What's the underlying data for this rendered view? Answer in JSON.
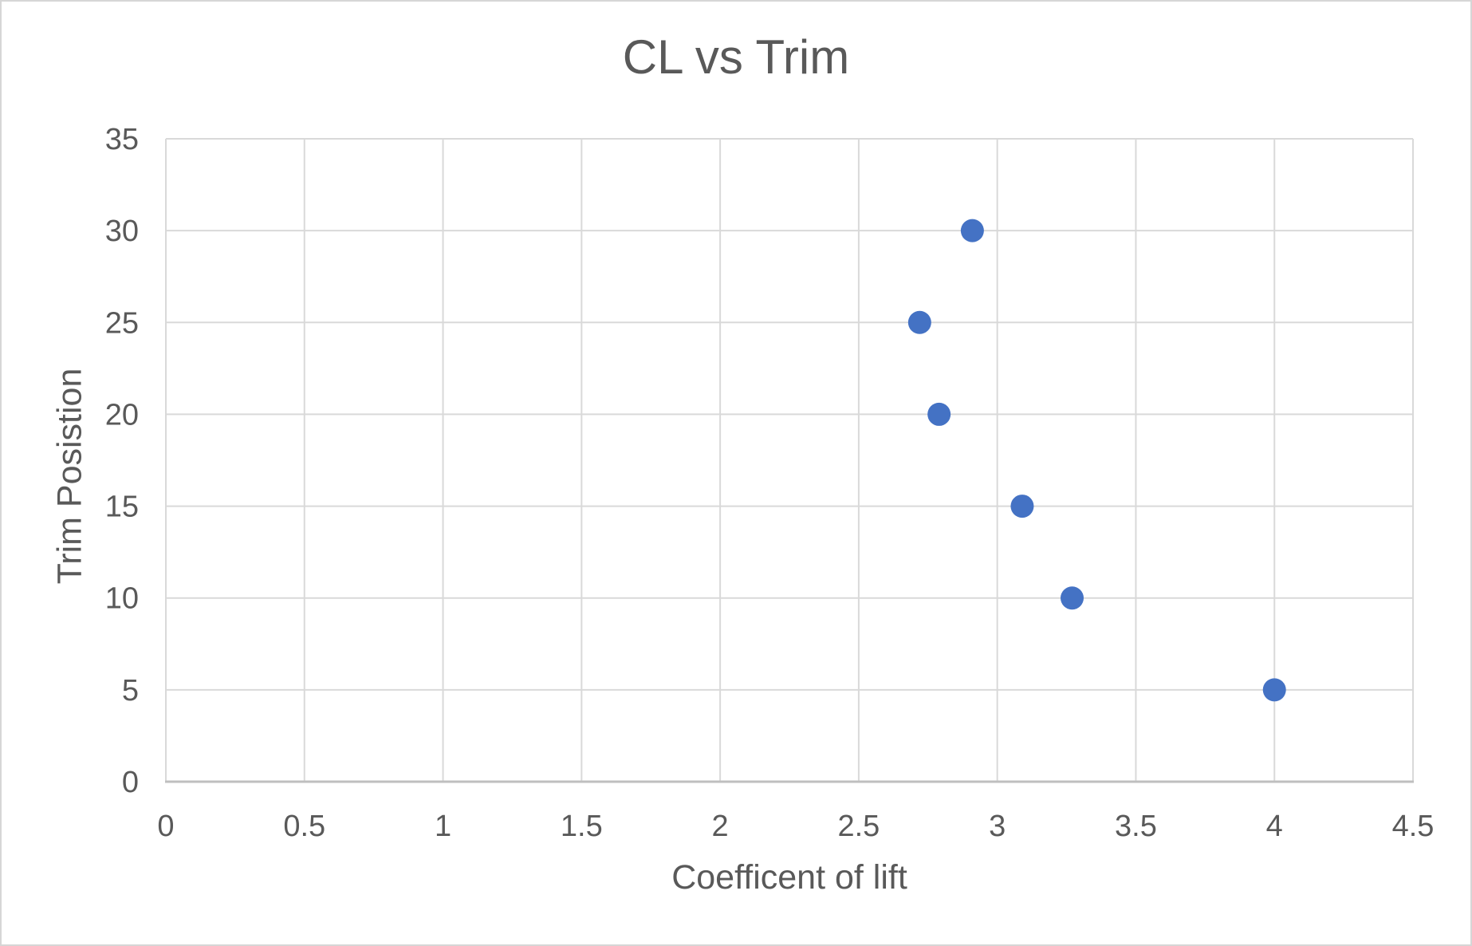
{
  "chart_data": {
    "type": "scatter",
    "title": "CL vs Trim",
    "xlabel": "Coefficent of lift",
    "ylabel": "Trim Posistion",
    "series": [
      {
        "name": "CL vs Trim",
        "points": [
          {
            "x": 4.0,
            "y": 5
          },
          {
            "x": 3.27,
            "y": 10
          },
          {
            "x": 3.09,
            "y": 15
          },
          {
            "x": 2.79,
            "y": 20
          },
          {
            "x": 2.72,
            "y": 25
          },
          {
            "x": 2.91,
            "y": 30
          }
        ]
      }
    ],
    "xlim": [
      0,
      4.5
    ],
    "ylim": [
      0,
      35
    ],
    "x_ticks": [
      0,
      0.5,
      1,
      1.5,
      2,
      2.5,
      3,
      3.5,
      4,
      4.5
    ],
    "y_ticks": [
      0,
      5,
      10,
      15,
      20,
      25,
      30,
      35
    ],
    "x_tick_labels": [
      "0",
      "0.5",
      "1",
      "1.5",
      "2",
      "2.5",
      "3",
      "3.5",
      "4",
      "4.5"
    ],
    "y_tick_labels": [
      "0",
      "5",
      "10",
      "15",
      "20",
      "25",
      "30",
      "35"
    ],
    "grid": true,
    "legend": false,
    "marker_radius": 14.5,
    "colors": {
      "marker": "#4472c4",
      "gridline": "#d9d9d9",
      "axis_line": "#bfbfbf",
      "text": "#595959",
      "background": "#ffffff",
      "border": "#d6d6d6"
    }
  }
}
